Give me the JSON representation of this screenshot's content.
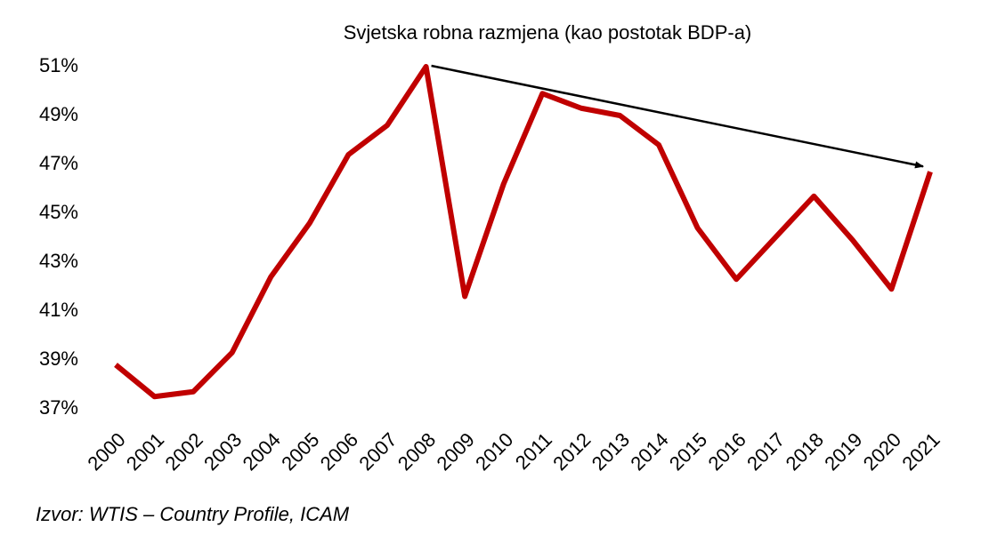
{
  "chart_data": {
    "type": "line",
    "title": "Svjetska robna razmjena (kao postotak BDP-a)",
    "source": "Izvor: WTIS – Country Profile, ICAM",
    "categories": [
      "2000",
      "2001",
      "2002",
      "2003",
      "2004",
      "2005",
      "2006",
      "2007",
      "2008",
      "2009",
      "2010",
      "2011",
      "2012",
      "2013",
      "2014",
      "2015",
      "2016",
      "2017",
      "2018",
      "2019",
      "2020",
      "2021"
    ],
    "series": [
      {
        "color": "#c00000",
        "values": [
          38.8,
          37.5,
          37.7,
          39.3,
          42.4,
          44.6,
          47.4,
          48.6,
          51.0,
          41.6,
          46.2,
          49.9,
          49.3,
          49.0,
          47.8,
          44.4,
          42.3,
          44.0,
          45.7,
          43.9,
          41.9,
          46.7
        ]
      }
    ],
    "ylim": [
      37,
      51
    ],
    "yticks": [
      {
        "value": 37,
        "label": "37%"
      },
      {
        "value": 39,
        "label": "39%"
      },
      {
        "value": 41,
        "label": "41%"
      },
      {
        "value": 43,
        "label": "43%"
      },
      {
        "value": 45,
        "label": "45%"
      },
      {
        "value": 47,
        "label": "47%"
      },
      {
        "value": 49,
        "label": "49%"
      },
      {
        "value": 51,
        "label": "51%"
      }
    ],
    "grid": false
  }
}
